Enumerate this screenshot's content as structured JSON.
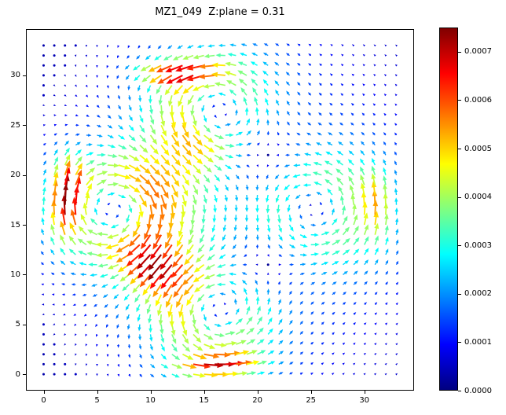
{
  "title": "MZ1_049  Z:plane = 0.31",
  "axes": {
    "x_ticks": [
      0,
      5,
      10,
      15,
      20,
      25,
      30
    ],
    "y_ticks": [
      0,
      5,
      10,
      15,
      20,
      25,
      30
    ],
    "xlim": [
      -1.65,
      34.65
    ],
    "ylim": [
      -1.65,
      34.65
    ]
  },
  "colorbar": {
    "tick_labels": [
      "0.0000",
      "0.0001",
      "0.0002",
      "0.0003",
      "0.0004",
      "0.0005",
      "0.0006",
      "0.0007"
    ],
    "tick_values": [
      0,
      0.0001,
      0.0002,
      0.0003,
      0.0004,
      0.0005,
      0.0006,
      0.0007
    ],
    "vmin": 0,
    "vmax": 0.00075,
    "colormap": "jet"
  },
  "chart_data": {
    "type": "quiver",
    "title": "MZ1_049  Z:plane = 0.31",
    "xlabel": "",
    "ylabel": "",
    "grid": {
      "x_start": 0,
      "x_end": 33,
      "y_start": 0,
      "y_end": 33,
      "step": 1,
      "points_per_side": 34
    },
    "color_encoding": "vector magnitude",
    "colormap": "jet",
    "magnitude_range": [
      0,
      0.00075
    ],
    "max_arrow_magnitude": 0.00075,
    "features": {
      "saddle_point": [
        16.5,
        16.5
      ],
      "calm_borders": "outermost rows/columns and corners near zero (navy dots)"
    },
    "field_model": {
      "description": "velocity field approximated as superposition of vortices and edge jets; arrows colored by |v| on jet colormap",
      "vortices": [
        {
          "center": [
            7.0,
            16.5
          ],
          "spin": -1,
          "amplitude": 0.55,
          "sigma": 4.6,
          "rotation": "clockwise"
        },
        {
          "center": [
            25.5,
            16.5
          ],
          "spin": 1,
          "amplitude": 0.42,
          "sigma": 4.6,
          "rotation": "counterclockwise"
        },
        {
          "center": [
            16.0,
            26.5
          ],
          "spin": 1,
          "amplitude": 0.48,
          "sigma": 4.4,
          "rotation": "counterclockwise"
        },
        {
          "center": [
            16.0,
            6.5
          ],
          "spin": 1,
          "amplitude": 0.48,
          "sigma": 4.4,
          "rotation": "counterclockwise"
        }
      ],
      "jets": [
        {
          "center": [
            2.0,
            17.5
          ],
          "dir": [
            0,
            1
          ],
          "sigma": [
            1.7,
            4.8
          ],
          "amplitude": 0.55,
          "note": "left-edge upward red jet"
        },
        {
          "center": [
            12.5,
            30.6
          ],
          "dir": [
            -1,
            -0.08
          ],
          "sigma": [
            4.3,
            1.35
          ],
          "amplitude": 0.52,
          "note": "top-edge leftward red jet"
        },
        {
          "center": [
            15.5,
            0.9
          ],
          "dir": [
            1,
            0.08
          ],
          "sigma": [
            4.3,
            1.35
          ],
          "amplitude": 0.52,
          "note": "bottom-edge rightward red jet"
        },
        {
          "center": [
            31.2,
            16.5
          ],
          "dir": [
            0,
            1
          ],
          "sigma": [
            1.5,
            4.0
          ],
          "amplitude": 0.3,
          "note": "right-edge upward orange jet"
        },
        {
          "center": [
            11.0,
            11.3
          ],
          "dir": [
            -0.65,
            -0.76
          ],
          "sigma": [
            2.6,
            2.2
          ],
          "amplitude": 0.3,
          "note": "inner down-left orange band"
        }
      ]
    }
  }
}
